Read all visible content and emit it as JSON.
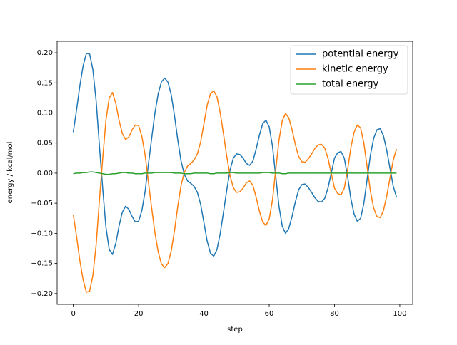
{
  "chart_data": {
    "type": "line",
    "x_label": "step",
    "y_label": "energy / kcal/mol",
    "x": [
      0,
      1,
      2,
      3,
      4,
      5,
      6,
      7,
      8,
      9,
      10,
      11,
      12,
      13,
      14,
      15,
      16,
      17,
      18,
      19,
      20,
      21,
      22,
      23,
      24,
      25,
      26,
      27,
      28,
      29,
      30,
      31,
      32,
      33,
      34,
      35,
      36,
      37,
      38,
      39,
      40,
      41,
      42,
      43,
      44,
      45,
      46,
      47,
      48,
      49,
      50,
      51,
      52,
      53,
      54,
      55,
      56,
      57,
      58,
      59,
      60,
      61,
      62,
      63,
      64,
      65,
      66,
      67,
      68,
      69,
      70,
      71,
      72,
      73,
      74,
      75,
      76,
      77,
      78,
      79,
      80,
      81,
      82,
      83,
      84,
      85,
      86,
      87,
      88,
      89,
      90,
      91,
      92,
      93,
      94,
      95,
      96,
      97,
      98,
      99
    ],
    "series": [
      {
        "name": "potential energy",
        "color": "#1f77b4",
        "values": [
          0.068,
          0.105,
          0.145,
          0.178,
          0.199,
          0.198,
          0.172,
          0.12,
          0.045,
          -0.025,
          -0.09,
          -0.127,
          -0.135,
          -0.117,
          -0.088,
          -0.065,
          -0.055,
          -0.06,
          -0.072,
          -0.081,
          -0.08,
          -0.062,
          -0.03,
          0.015,
          0.058,
          0.1,
          0.132,
          0.152,
          0.158,
          0.151,
          0.13,
          0.095,
          0.055,
          0.02,
          -0.002,
          -0.013,
          -0.017,
          -0.022,
          -0.032,
          -0.052,
          -0.082,
          -0.113,
          -0.133,
          -0.138,
          -0.127,
          -0.1,
          -0.065,
          -0.028,
          0.005,
          0.025,
          0.032,
          0.031,
          0.025,
          0.016,
          0.013,
          0.02,
          0.04,
          0.063,
          0.082,
          0.088,
          0.077,
          0.045,
          -0.005,
          -0.055,
          -0.088,
          -0.1,
          -0.092,
          -0.072,
          -0.048,
          -0.028,
          -0.019,
          -0.018,
          -0.024,
          -0.032,
          -0.041,
          -0.047,
          -0.048,
          -0.042,
          -0.025,
          0.0,
          0.025,
          0.034,
          0.036,
          0.025,
          -0.005,
          -0.042,
          -0.068,
          -0.08,
          -0.075,
          -0.05,
          -0.01,
          0.03,
          0.058,
          0.072,
          0.074,
          0.062,
          0.038,
          0.008,
          -0.022,
          -0.04
        ]
      },
      {
        "name": "kinetic energy",
        "color": "#ff7f0e",
        "values": [
          -0.069,
          -0.105,
          -0.145,
          -0.177,
          -0.198,
          -0.196,
          -0.17,
          -0.119,
          -0.045,
          0.024,
          0.088,
          0.125,
          0.134,
          0.116,
          0.088,
          0.066,
          0.056,
          0.06,
          0.072,
          0.08,
          0.079,
          0.061,
          0.03,
          -0.015,
          -0.058,
          -0.099,
          -0.131,
          -0.151,
          -0.157,
          -0.15,
          -0.129,
          -0.095,
          -0.055,
          -0.02,
          0.001,
          0.012,
          0.016,
          0.022,
          0.032,
          0.052,
          0.082,
          0.113,
          0.132,
          0.137,
          0.127,
          0.1,
          0.065,
          0.028,
          -0.004,
          -0.024,
          -0.032,
          -0.031,
          -0.025,
          -0.016,
          -0.013,
          -0.02,
          -0.04,
          -0.063,
          -0.081,
          -0.087,
          -0.076,
          -0.045,
          0.005,
          0.055,
          0.087,
          0.099,
          0.092,
          0.072,
          0.048,
          0.028,
          0.019,
          0.018,
          0.024,
          0.032,
          0.041,
          0.047,
          0.048,
          0.042,
          0.025,
          0.0,
          -0.025,
          -0.034,
          -0.036,
          -0.025,
          0.005,
          0.042,
          0.068,
          0.08,
          0.075,
          0.05,
          0.01,
          -0.03,
          -0.058,
          -0.072,
          -0.074,
          -0.062,
          -0.038,
          -0.008,
          0.022,
          0.04
        ]
      },
      {
        "name": "total energy",
        "color": "#2ca02c",
        "values": [
          -0.001,
          0,
          0,
          0.001,
          0.001,
          0.002,
          0.002,
          0.001,
          0,
          -0.001,
          -0.002,
          -0.002,
          -0.001,
          -0.001,
          0,
          0.001,
          0.001,
          0,
          0,
          -0.001,
          -0.001,
          -0.001,
          0,
          0,
          0,
          0.001,
          0.001,
          0.001,
          0.001,
          0.001,
          0.001,
          0,
          0,
          0,
          -0.001,
          -0.001,
          -0.001,
          0,
          0,
          0,
          0,
          0,
          -0.001,
          -0.001,
          0,
          0,
          0,
          0,
          0.001,
          0.001,
          0,
          0,
          0,
          0,
          0,
          0,
          0,
          0,
          0.001,
          0.001,
          0.001,
          0,
          0,
          0,
          -0.001,
          -0.001,
          0,
          0,
          0,
          0,
          0,
          0,
          0,
          0,
          0,
          0,
          0,
          0,
          0,
          0,
          0,
          0,
          0,
          0,
          0,
          0,
          0,
          0,
          0,
          0,
          0,
          0,
          0,
          0,
          0,
          0,
          0,
          0,
          0,
          0
        ]
      }
    ],
    "xlim": [
      -4.95,
      103.95
    ],
    "ylim": [
      -0.218,
      0.219
    ],
    "xticks": [
      0,
      20,
      40,
      60,
      80,
      100
    ],
    "yticks": [
      {
        "value": -0.2,
        "label": "−0.20"
      },
      {
        "value": -0.15,
        "label": "−0.15"
      },
      {
        "value": -0.1,
        "label": "−0.10"
      },
      {
        "value": -0.05,
        "label": "−0.05"
      },
      {
        "value": 0,
        "label": "0.00"
      },
      0.05,
      {
        "value": 0.1,
        "label": "0.10"
      },
      0.15,
      {
        "value": 0.2,
        "label": "0.20"
      }
    ],
    "grid": false,
    "legend": "upper right"
  }
}
